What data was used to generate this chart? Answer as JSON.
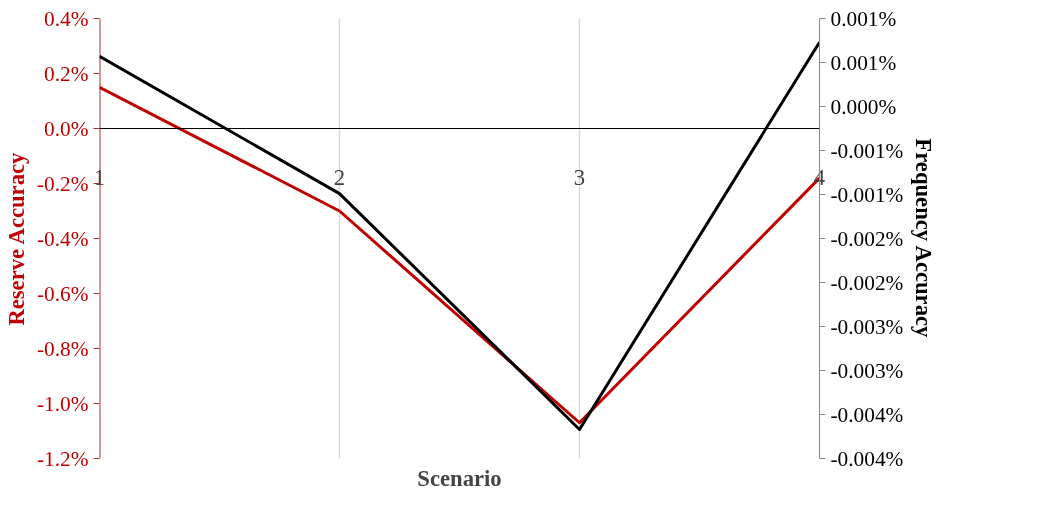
{
  "chart_data": {
    "type": "line",
    "xlabel": "Scenario",
    "ylabel": "Reserve Accuracy",
    "y2label": "Frequency Accuracy",
    "x": [
      1,
      2,
      3,
      4
    ],
    "xlim": [
      1,
      4
    ],
    "xticks": [
      1,
      2,
      3,
      4
    ],
    "ylim": [
      -1.2,
      0.4
    ],
    "yticks": [
      {
        "value": -1.2,
        "label": "-1.2%"
      },
      {
        "value": -1.0,
        "label": "-1.0%"
      },
      {
        "value": -0.8,
        "label": "-0.8%"
      },
      {
        "value": -0.6,
        "label": "-0.6%"
      },
      {
        "value": -0.4,
        "label": "-0.4%"
      },
      {
        "value": -0.2,
        "label": "-0.2%"
      },
      {
        "value": 0,
        "label": "0.0%"
      },
      {
        "value": 0.2,
        "label": "0.2%"
      },
      {
        "value": 0.4,
        "label": "0.4%"
      }
    ],
    "y2lim": [
      -0.004,
      0.001
    ],
    "y2ticks": [
      {
        "value": -0.004,
        "label": "-0.004%"
      },
      {
        "value": -0.0035,
        "label": "-0.004%"
      },
      {
        "value": -0.003,
        "label": "-0.003%"
      },
      {
        "value": -0.0025,
        "label": "-0.003%"
      },
      {
        "value": -0.002,
        "label": "-0.002%"
      },
      {
        "value": -0.0015,
        "label": "-0.002%"
      },
      {
        "value": -0.001,
        "label": "-0.001%"
      },
      {
        "value": -0.0005,
        "label": "-0.001%"
      },
      {
        "value": 0,
        "label": "0.000%"
      },
      {
        "value": 0.0005,
        "label": "0.001%"
      },
      {
        "value": 0.001,
        "label": "0.001%"
      }
    ],
    "series": [
      {
        "color": "#c00000",
        "values": [
          0.15,
          -0.3,
          -1.07,
          -0.18
        ]
      },
      {
        "color": "#000000",
        "axis": "y2",
        "values": [
          0.00057,
          -0.00099,
          -0.00367,
          0.00073
        ]
      }
    ],
    "grid": "x",
    "marker": "none",
    "line_style": "solid"
  }
}
